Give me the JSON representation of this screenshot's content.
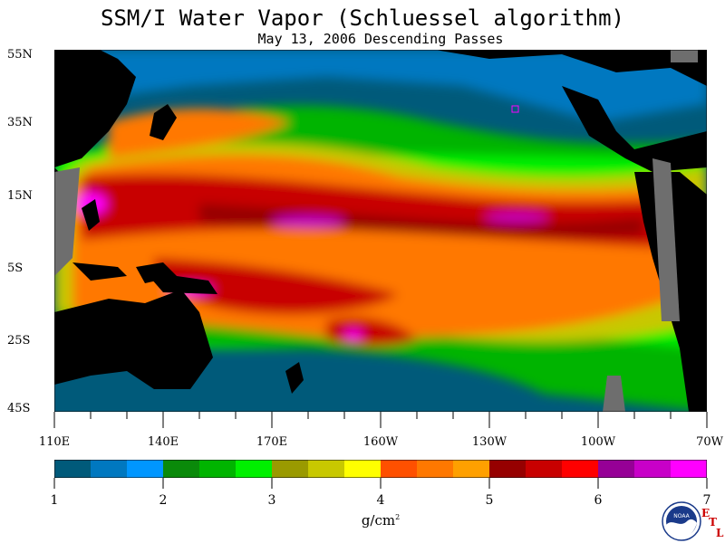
{
  "title": "SSM/I Water Vapor (Schluessel algorithm)",
  "subtitle": "May 13, 2006  Descending Passes",
  "lat_labels": [
    "55N",
    "35N",
    "15N",
    "5S",
    "25S",
    "45S"
  ],
  "lon_labels": [
    "110E",
    "140E",
    "170E",
    "160W",
    "130W",
    "100W",
    "70W"
  ],
  "colorbar": {
    "ticks": [
      "1",
      "2",
      "3",
      "4",
      "5",
      "6",
      "7"
    ],
    "units": "g/cm",
    "units_sup": "2",
    "colors": [
      "#005a7a",
      "#0078c0",
      "#0096ff",
      "#0a8a0a",
      "#00b400",
      "#00f000",
      "#9a9a00",
      "#c8c800",
      "#ffff00",
      "#ff5000",
      "#ff7800",
      "#ffa000",
      "#960000",
      "#c80000",
      "#ff0000",
      "#960096",
      "#c800c8",
      "#ff00ff"
    ]
  },
  "logo": {
    "emblem": "NOAA",
    "letters": [
      "E",
      "T",
      "L"
    ]
  },
  "colors": {
    "land": "#000000",
    "missing": "#6e6e6e",
    "ocean_low": "#005a7a"
  }
}
